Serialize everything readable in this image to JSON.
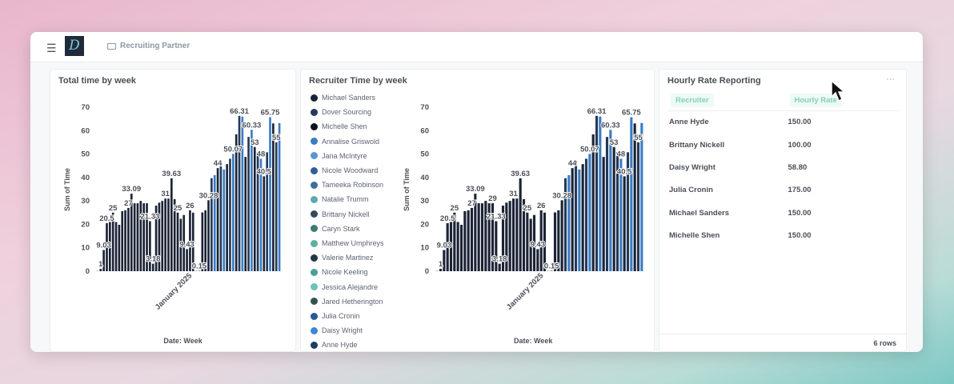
{
  "header": {
    "breadcrumb": "Recruiting Partner",
    "logo_letter": "D"
  },
  "chart_data": [
    {
      "type": "bar",
      "title": "Total time by week",
      "xlabel": "Date: Week",
      "ylabel": "Sum of Time",
      "ylim": [
        0,
        70
      ],
      "yticks": [
        0,
        10,
        20,
        30,
        40,
        50,
        60,
        70
      ],
      "xtick_label": "January 2025",
      "values": [
        0.1,
        1,
        9.03,
        20.5,
        21,
        25,
        21,
        19.81,
        25.63,
        26,
        27,
        33.09,
        29,
        29,
        30,
        29,
        29,
        21.33,
        3.18,
        28,
        29.25,
        30,
        31,
        31,
        39.63,
        30.76,
        25,
        22.37,
        24,
        9.43,
        26,
        25,
        0.1,
        0.15,
        25.09,
        26,
        30.28,
        39.71,
        41,
        44,
        47,
        43.41,
        45.71,
        48,
        50.07,
        58.4,
        66.31,
        66,
        48.78,
        57.32,
        60.33,
        53,
        50.75,
        48,
        40.5,
        50.75,
        65.75,
        63.07,
        55,
        63.25
      ]
    },
    {
      "type": "bar",
      "title": "Recruiter Time by week",
      "xlabel": "Date: Week",
      "ylabel": "Sum of Time",
      "ylim": [
        0,
        70
      ],
      "yticks": [
        0,
        10,
        20,
        30,
        40,
        50,
        60,
        70
      ],
      "xtick_label": "January 2025",
      "values": [
        0.1,
        1,
        9.03,
        20.5,
        21,
        25,
        21,
        19.81,
        25.63,
        26,
        27,
        33.09,
        29,
        29,
        30,
        29,
        29,
        21.33,
        3.18,
        28,
        29.25,
        30,
        31,
        31,
        39.63,
        30.76,
        25,
        22.37,
        24,
        9.43,
        26,
        25,
        0.1,
        0.15,
        25.09,
        26,
        30.28,
        39.71,
        41,
        44,
        47,
        43.41,
        45.71,
        48,
        50.07,
        58.4,
        66.31,
        66,
        48.78,
        57.32,
        60.33,
        53,
        50.75,
        48,
        40.5,
        50.75,
        65.75,
        63.07,
        55,
        63.25
      ],
      "legend": [
        {
          "name": "Michael Sanders",
          "color": "#1b2436"
        },
        {
          "name": "Dover Sourcing",
          "color": "#243a5a"
        },
        {
          "name": "Michelle Shen",
          "color": "#0d121c"
        },
        {
          "name": "Annalise Griswold",
          "color": "#3b7cc4"
        },
        {
          "name": "Jana McIntyre",
          "color": "#5b95d0"
        },
        {
          "name": "Nicole Woodward",
          "color": "#2f5f96"
        },
        {
          "name": "Tameeka Robinson",
          "color": "#3c6e9e"
        },
        {
          "name": "Natalie Trumm",
          "color": "#5fa8b0"
        },
        {
          "name": "Brittany Nickell",
          "color": "#34495e"
        },
        {
          "name": "Caryn Stark",
          "color": "#3f7a6e"
        },
        {
          "name": "Matthew Umphreys",
          "color": "#58b3a0"
        },
        {
          "name": "Valerie Martinez",
          "color": "#263845"
        },
        {
          "name": "Nicole Keeling",
          "color": "#4e9e94"
        },
        {
          "name": "Jessica Alejandre",
          "color": "#6cc3b6"
        },
        {
          "name": "Jared Hetherington",
          "color": "#2f5550"
        },
        {
          "name": "Julia Cronin",
          "color": "#285a96"
        },
        {
          "name": "Daisy Wright",
          "color": "#3e86d0"
        },
        {
          "name": "Anne Hyde",
          "color": "#1f3b60"
        }
      ]
    }
  ],
  "rate_table": {
    "title": "Hourly Rate Reporting",
    "columns": [
      "Recruiter",
      "Hourly Rate"
    ],
    "rows": [
      [
        "Anne Hyde",
        "150.00"
      ],
      [
        "Brittany Nickell",
        "100.00"
      ],
      [
        "Daisy Wright",
        "58.80"
      ],
      [
        "Julia Cronin",
        "175.00"
      ],
      [
        "Michael Sanders",
        "150.00"
      ],
      [
        "Michelle Shen",
        "150.00"
      ]
    ],
    "footer": "6 rows",
    "menu": "···"
  }
}
